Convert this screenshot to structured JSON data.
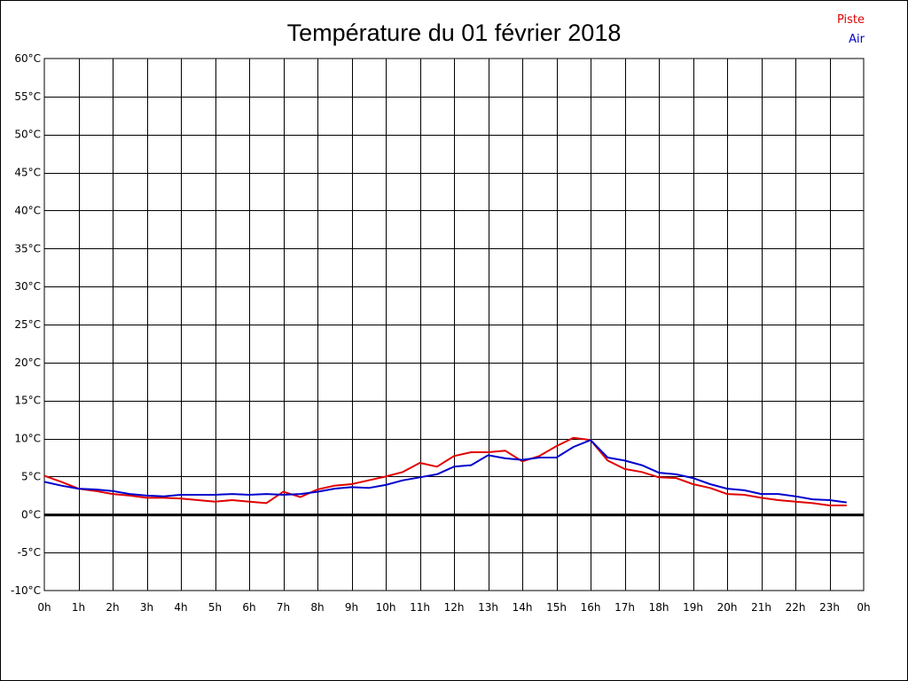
{
  "chart_data": {
    "type": "line",
    "title": "Température du 01 février 2018",
    "xlabel": "",
    "ylabel": "",
    "x_range": [
      0,
      24
    ],
    "ylim": [
      -10,
      60
    ],
    "grid": true,
    "legend_position": "top-right",
    "x_tick_labels": [
      "0h",
      "1h",
      "2h",
      "3h",
      "4h",
      "5h",
      "6h",
      "7h",
      "8h",
      "9h",
      "10h",
      "11h",
      "12h",
      "13h",
      "14h",
      "15h",
      "16h",
      "17h",
      "18h",
      "19h",
      "20h",
      "21h",
      "22h",
      "23h",
      "0h"
    ],
    "y_tick_labels": [
      "60°C",
      "55°C",
      "50°C",
      "45°C",
      "40°C",
      "35°C",
      "30°C",
      "25°C",
      "20°C",
      "15°C",
      "10°C",
      "5°C",
      "0°C",
      "-5°C",
      "-10°C"
    ],
    "y_tick_values": [
      60,
      55,
      50,
      45,
      40,
      35,
      30,
      25,
      20,
      15,
      10,
      5,
      0,
      -5,
      -10
    ],
    "series": [
      {
        "name": "Piste",
        "color": "#e00000",
        "x": [
          0,
          0.5,
          1,
          1.5,
          2,
          2.5,
          3,
          3.5,
          4,
          4.5,
          5,
          5.5,
          6,
          6.5,
          7,
          7.5,
          8,
          8.5,
          9,
          9.5,
          10,
          10.5,
          11,
          11.5,
          12,
          12.5,
          13,
          13.5,
          14,
          14.5,
          15,
          15.5,
          16,
          16.5,
          17,
          17.5,
          18,
          18.5,
          19,
          19.5,
          20,
          20.5,
          21,
          21.5,
          22,
          22.5,
          23,
          23.5
        ],
        "values": [
          5.1,
          4.3,
          3.4,
          3.1,
          2.7,
          2.5,
          2.2,
          2.2,
          2.1,
          1.9,
          1.7,
          1.9,
          1.7,
          1.5,
          3.0,
          2.3,
          3.3,
          3.8,
          4.0,
          4.5,
          5.0,
          5.6,
          6.8,
          6.3,
          7.7,
          8.2,
          8.2,
          8.4,
          7.0,
          7.7,
          9.0,
          10.1,
          9.8,
          7.1,
          6.0,
          5.6,
          4.9,
          4.8,
          4.0,
          3.5,
          2.7,
          2.6,
          2.2,
          1.9,
          1.7,
          1.5,
          1.2,
          1.2
        ]
      },
      {
        "name": "Air",
        "color": "#0000cc",
        "x": [
          0,
          0.5,
          1,
          1.5,
          2,
          2.5,
          3,
          3.5,
          4,
          4.5,
          5,
          5.5,
          6,
          6.5,
          7,
          7.5,
          8,
          8.5,
          9,
          9.5,
          10,
          10.5,
          11,
          11.5,
          12,
          12.5,
          13,
          13.5,
          14,
          14.5,
          15,
          15.5,
          16,
          16.5,
          17,
          17.5,
          18,
          18.5,
          19,
          19.5,
          20,
          20.5,
          21,
          21.5,
          22,
          22.5,
          23,
          23.5
        ],
        "values": [
          4.3,
          3.8,
          3.4,
          3.3,
          3.1,
          2.7,
          2.5,
          2.4,
          2.6,
          2.6,
          2.6,
          2.7,
          2.6,
          2.7,
          2.6,
          2.7,
          3.0,
          3.4,
          3.6,
          3.5,
          3.9,
          4.5,
          4.9,
          5.3,
          6.3,
          6.5,
          7.8,
          7.4,
          7.2,
          7.5,
          7.5,
          8.9,
          9.8,
          7.5,
          7.1,
          6.5,
          5.5,
          5.3,
          4.8,
          4.0,
          3.4,
          3.2,
          2.7,
          2.7,
          2.4,
          2.0,
          1.9,
          1.6
        ]
      }
    ]
  }
}
